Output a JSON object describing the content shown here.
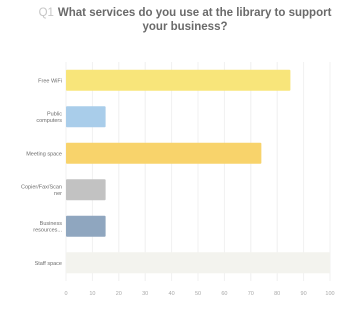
{
  "question_number": "Q1",
  "question_title": "What services do you use at the library to support your business?",
  "chart_data": {
    "type": "bar",
    "orientation": "horizontal",
    "title": "What services do you use at the library to support your business?",
    "categories": [
      [
        "Free WiFi"
      ],
      [
        "Public",
        "computers"
      ],
      [
        "Meeting space"
      ],
      [
        "Copier/Fax/Scan",
        "ner"
      ],
      [
        "Business",
        "resources..."
      ],
      [
        "Staff space"
      ]
    ],
    "values": [
      85,
      15,
      74,
      15,
      15,
      0
    ],
    "colors": [
      "#f8e57a",
      "#a9cdea",
      "#f8d36b",
      "#c2c2c2",
      "#8fa6bf",
      "#f3f3ee"
    ],
    "xlim": [
      0,
      100
    ],
    "ticks": [
      0,
      10,
      20,
      30,
      40,
      50,
      60,
      70,
      80,
      90,
      100
    ],
    "grid": true
  }
}
